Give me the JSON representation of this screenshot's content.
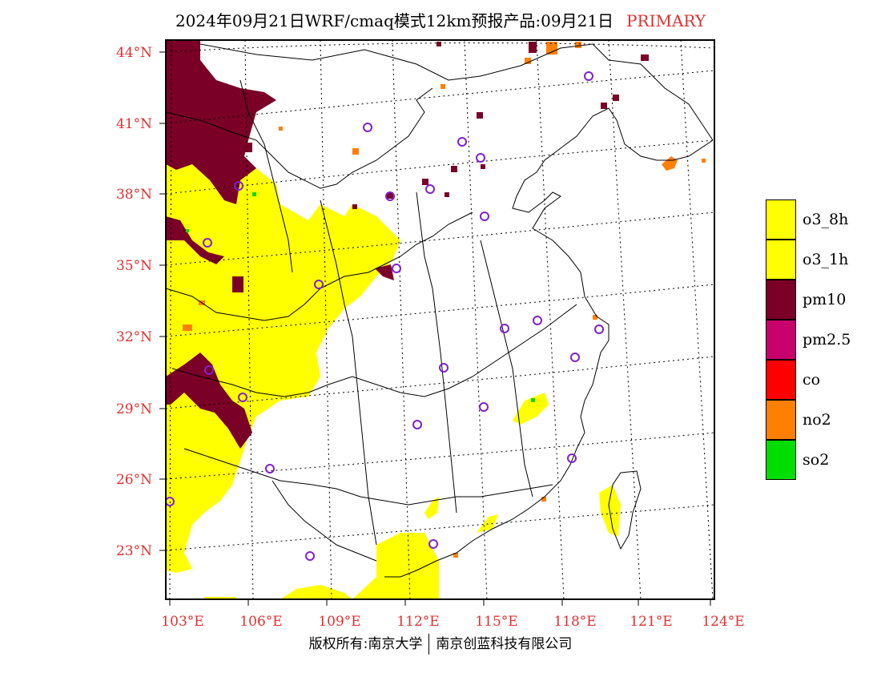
{
  "title": {
    "main": "2024年09月21日WRF/cmaq模式12km预报产品:09月21日",
    "tag": "PRIMARY",
    "tag_color": "#e03030"
  },
  "axes": {
    "lat_labels": [
      "44°N",
      "41°N",
      "38°N",
      "35°N",
      "32°N",
      "29°N",
      "26°N",
      "23°N"
    ],
    "lon_labels": [
      "103°E",
      "106°E",
      "109°E",
      "112°E",
      "115°E",
      "118°E",
      "121°E",
      "124°E"
    ],
    "label_color": "#e03030"
  },
  "legend": [
    {
      "label": "o3_8h",
      "color": "#ffff00"
    },
    {
      "label": "o3_1h",
      "color": "#ffff00"
    },
    {
      "label": "pm10",
      "color": "#7a0028"
    },
    {
      "label": "pm2.5",
      "color": "#c8006e"
    },
    {
      "label": "co",
      "color": "#ff0000"
    },
    {
      "label": "no2",
      "color": "#ff7f00"
    },
    {
      "label": "so2",
      "color": "#00dd00"
    }
  ],
  "map_colors": {
    "o3": "#ffff00",
    "pm10": "#7a0028",
    "pm25": "#c8006e",
    "no2": "#ff7f00",
    "so2": "#00dd00",
    "station": "#8020d0",
    "border": "#000000"
  },
  "credits": {
    "left": "版权所有:南京大学",
    "right": "南京创蓝科技有限公司"
  }
}
